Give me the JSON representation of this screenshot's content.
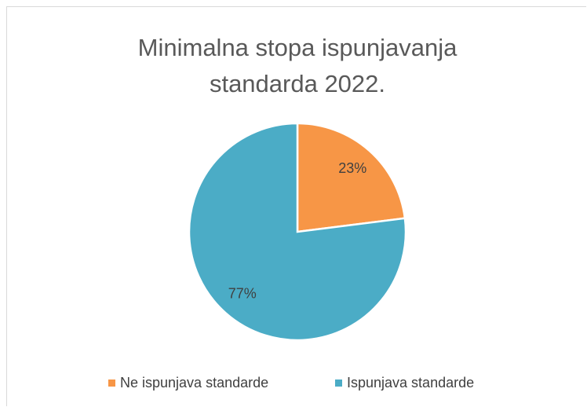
{
  "chart_data": {
    "type": "pie",
    "title": "Minimalna stopa ispunjavanja standarda 2022.",
    "categories": [
      "Ne ispunjava standarde",
      "Ispunjava standarde"
    ],
    "values": [
      23,
      77
    ],
    "value_labels": [
      "23%",
      "77%"
    ],
    "colors": [
      "#f79646",
      "#4bacc6"
    ],
    "legend": "bottom"
  }
}
